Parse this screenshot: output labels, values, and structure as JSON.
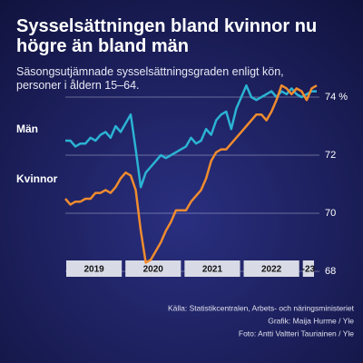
{
  "chart_data": {
    "type": "line",
    "title": "Sysselsättningen bland kvinnor nu högre än bland män",
    "subtitle": "Säsongsutjämnade sysselsättningsgraden enligt kön, personer i åldern 15–64.",
    "x_labels": [
      "2019",
      "2020",
      "2021",
      "2022",
      "-23"
    ],
    "ylim": [
      68,
      75
    ],
    "yticks": [
      68,
      70,
      72,
      {
        "value": 74,
        "label": "74 %"
      }
    ],
    "grid": true,
    "series": [
      {
        "name": "Män",
        "color": "#2bb3d3",
        "values": [
          72.5,
          72.5,
          72.3,
          72.4,
          72.4,
          72.6,
          72.5,
          72.7,
          72.8,
          72.6,
          73.0,
          72.8,
          73.1,
          73.4,
          72.2,
          70.9,
          71.4,
          71.6,
          71.8,
          72.0,
          71.9,
          72.0,
          72.1,
          72.2,
          72.3,
          72.6,
          72.4,
          72.5,
          72.9,
          72.7,
          73.2,
          73.4,
          73.5,
          72.9,
          73.6,
          74.0,
          74.4,
          74.0,
          73.9,
          74.0,
          74.1,
          74.2,
          74.0,
          74.2,
          74.1,
          74.3,
          74.1,
          74.0,
          74.1,
          74.2,
          74.2
        ]
      },
      {
        "name": "Kvinnor",
        "color": "#f08c2e",
        "values": [
          70.5,
          70.3,
          70.4,
          70.4,
          70.5,
          70.5,
          70.7,
          70.7,
          70.8,
          70.7,
          70.9,
          71.2,
          71.4,
          71.3,
          70.8,
          69.4,
          68.3,
          68.4,
          68.7,
          69.0,
          69.4,
          69.7,
          70.1,
          70.1,
          70.1,
          70.4,
          70.6,
          70.8,
          71.2,
          71.8,
          72.1,
          72.2,
          72.2,
          72.4,
          72.6,
          72.8,
          73.0,
          73.2,
          73.4,
          73.4,
          73.2,
          73.5,
          73.9,
          74.4,
          74.3,
          74.1,
          74.3,
          74.2,
          73.9,
          74.3,
          74.4
        ]
      }
    ],
    "sources": [
      "Källa: Statistikcentralen, Arbets- och näringsministeriet",
      "Grafik: Maija Hurme / Yle",
      "Foto: Antti Valtteri Tauriainen / Yle"
    ]
  }
}
